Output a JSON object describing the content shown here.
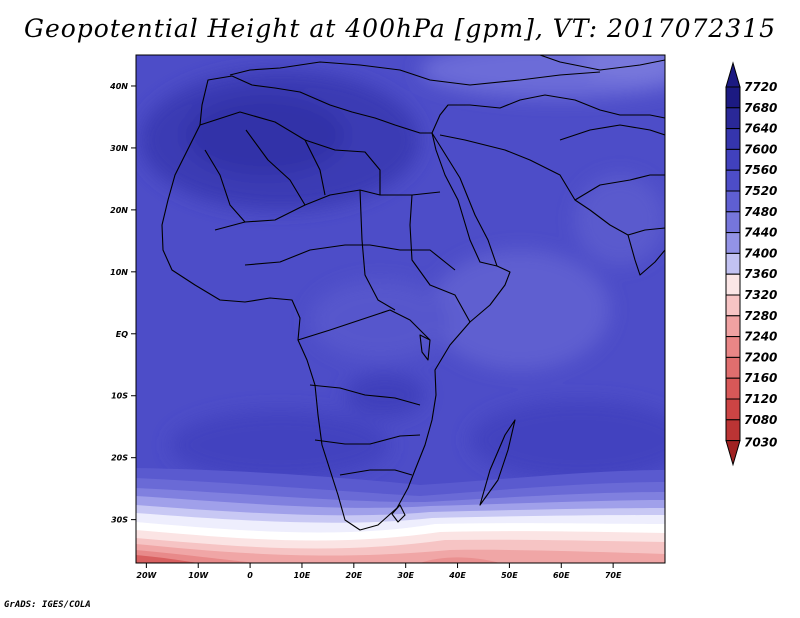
{
  "title": "Geopotential Height at 400hPa [gpm], VT: 2017072315",
  "credit": "GrADS: IGES/COLA",
  "map": {
    "projection": "latlon",
    "lon_range": [
      -22,
      80
    ],
    "lat_range": [
      -37,
      45
    ],
    "lat_ticks": [
      {
        "value": 40,
        "label": "40N"
      },
      {
        "value": 30,
        "label": "30N"
      },
      {
        "value": 20,
        "label": "20N"
      },
      {
        "value": 10,
        "label": "10N"
      },
      {
        "value": 0,
        "label": "EQ"
      },
      {
        "value": -10,
        "label": "10S"
      },
      {
        "value": -20,
        "label": "20S"
      },
      {
        "value": -30,
        "label": "30S"
      }
    ],
    "lon_ticks": [
      {
        "value": -20,
        "label": "20W"
      },
      {
        "value": -10,
        "label": "10W"
      },
      {
        "value": 0,
        "label": "0"
      },
      {
        "value": 10,
        "label": "10E"
      },
      {
        "value": 20,
        "label": "20E"
      },
      {
        "value": 30,
        "label": "30E"
      },
      {
        "value": 40,
        "label": "40E"
      },
      {
        "value": 50,
        "label": "50E"
      },
      {
        "value": 60,
        "label": "60E"
      },
      {
        "value": 70,
        "label": "70E"
      }
    ]
  },
  "colorbar": {
    "levels": [
      {
        "label": "7720",
        "color": "#1c1a82"
      },
      {
        "label": "7680",
        "color": "#2a2898"
      },
      {
        "label": "7640",
        "color": "#3535ad"
      },
      {
        "label": "7600",
        "color": "#4141bd"
      },
      {
        "label": "7560",
        "color": "#4d4dc8"
      },
      {
        "label": "7520",
        "color": "#5f5fd2"
      },
      {
        "label": "7480",
        "color": "#7676db"
      },
      {
        "label": "7440",
        "color": "#9393e6"
      },
      {
        "label": "7400",
        "color": "#c2c2f2"
      },
      {
        "label": "7360",
        "color": "#fbe6e6"
      },
      {
        "label": "7320",
        "color": "#f7c4c4"
      },
      {
        "label": "7280",
        "color": "#f0a2a2"
      },
      {
        "label": "7240",
        "color": "#e98686"
      },
      {
        "label": "7200",
        "color": "#e06e6e"
      },
      {
        "label": "7160",
        "color": "#d85858"
      },
      {
        "label": "7120",
        "color": "#cc4444"
      },
      {
        "label": "7080",
        "color": "#bb3434"
      },
      {
        "label": "7030",
        "color": "#a02222"
      }
    ]
  }
}
